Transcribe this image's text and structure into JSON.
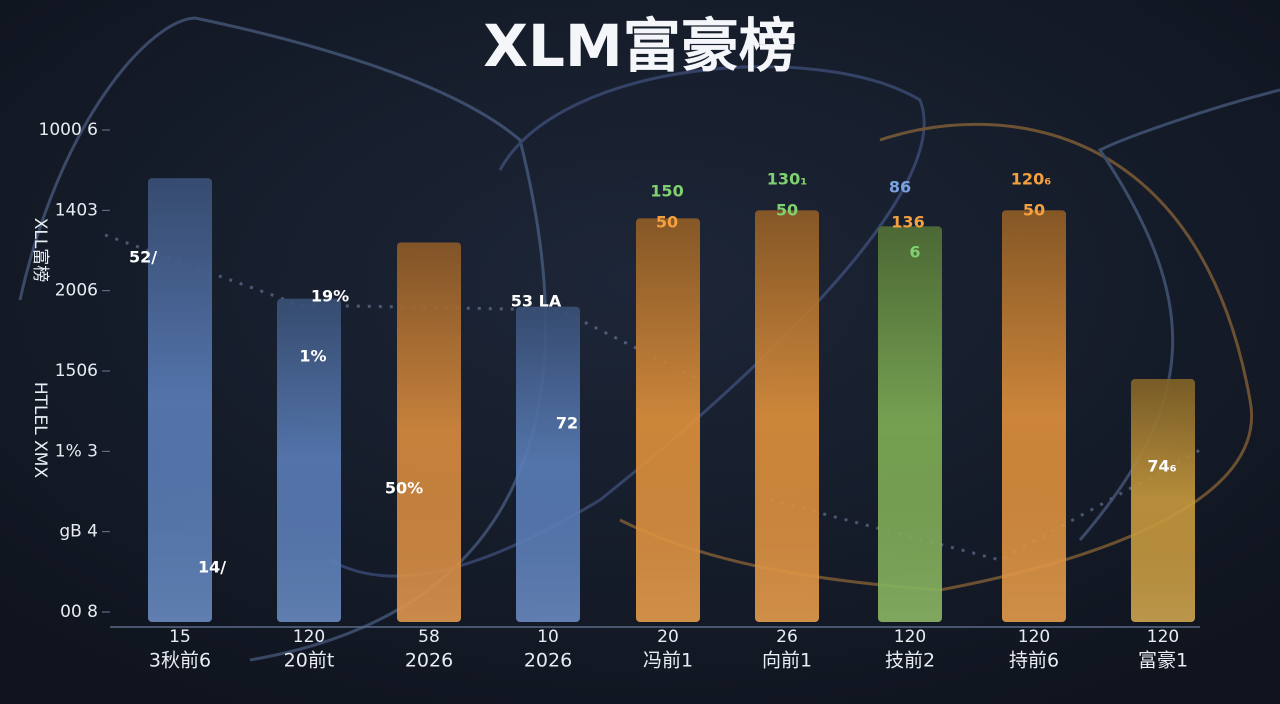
{
  "chart_data": {
    "type": "bar",
    "title": "XLM富豪榜",
    "y_label": "XLL富榜",
    "y_label_2": "HTLEL XMX",
    "categories": [
      "3秋前6",
      "20前t",
      "2026",
      "2026",
      "冯前1",
      "向前1",
      "技前2",
      "持前6",
      "富豪1"
    ],
    "category_codes": [
      "15",
      "120",
      "58",
      "10",
      "20",
      "26",
      "120",
      "120",
      "120"
    ],
    "values": [
      5.4,
      3.9,
      4.6,
      3.8,
      4.9,
      5.0,
      4.8,
      5.0,
      2.9
    ],
    "colors": [
      "#5a7db8",
      "#5a7db8",
      "#d98c3e",
      "#5a7db8",
      "#e0913c",
      "#e0913c",
      "#7fae55",
      "#e0913c",
      "#c99a3e"
    ],
    "ylim": [
      0,
      6
    ],
    "yticks": [
      {
        "value": 0,
        "label": "00 8"
      },
      {
        "value": 1,
        "label": "gB 4"
      },
      {
        "value": 2,
        "label": "1% 3"
      },
      {
        "value": 3,
        "label": "1506"
      },
      {
        "value": 4,
        "label": "2006"
      },
      {
        "value": 5,
        "label": "1403"
      },
      {
        "value": 6,
        "label": "1000 6"
      }
    ],
    "annotations": [
      "52/",
      "14/",
      "19%",
      "1%",
      "50%",
      "53 LA",
      "72",
      "150",
      "50",
      "130₁",
      "50",
      "86",
      "136",
      "6",
      "120₆",
      "50",
      "74₆"
    ]
  }
}
